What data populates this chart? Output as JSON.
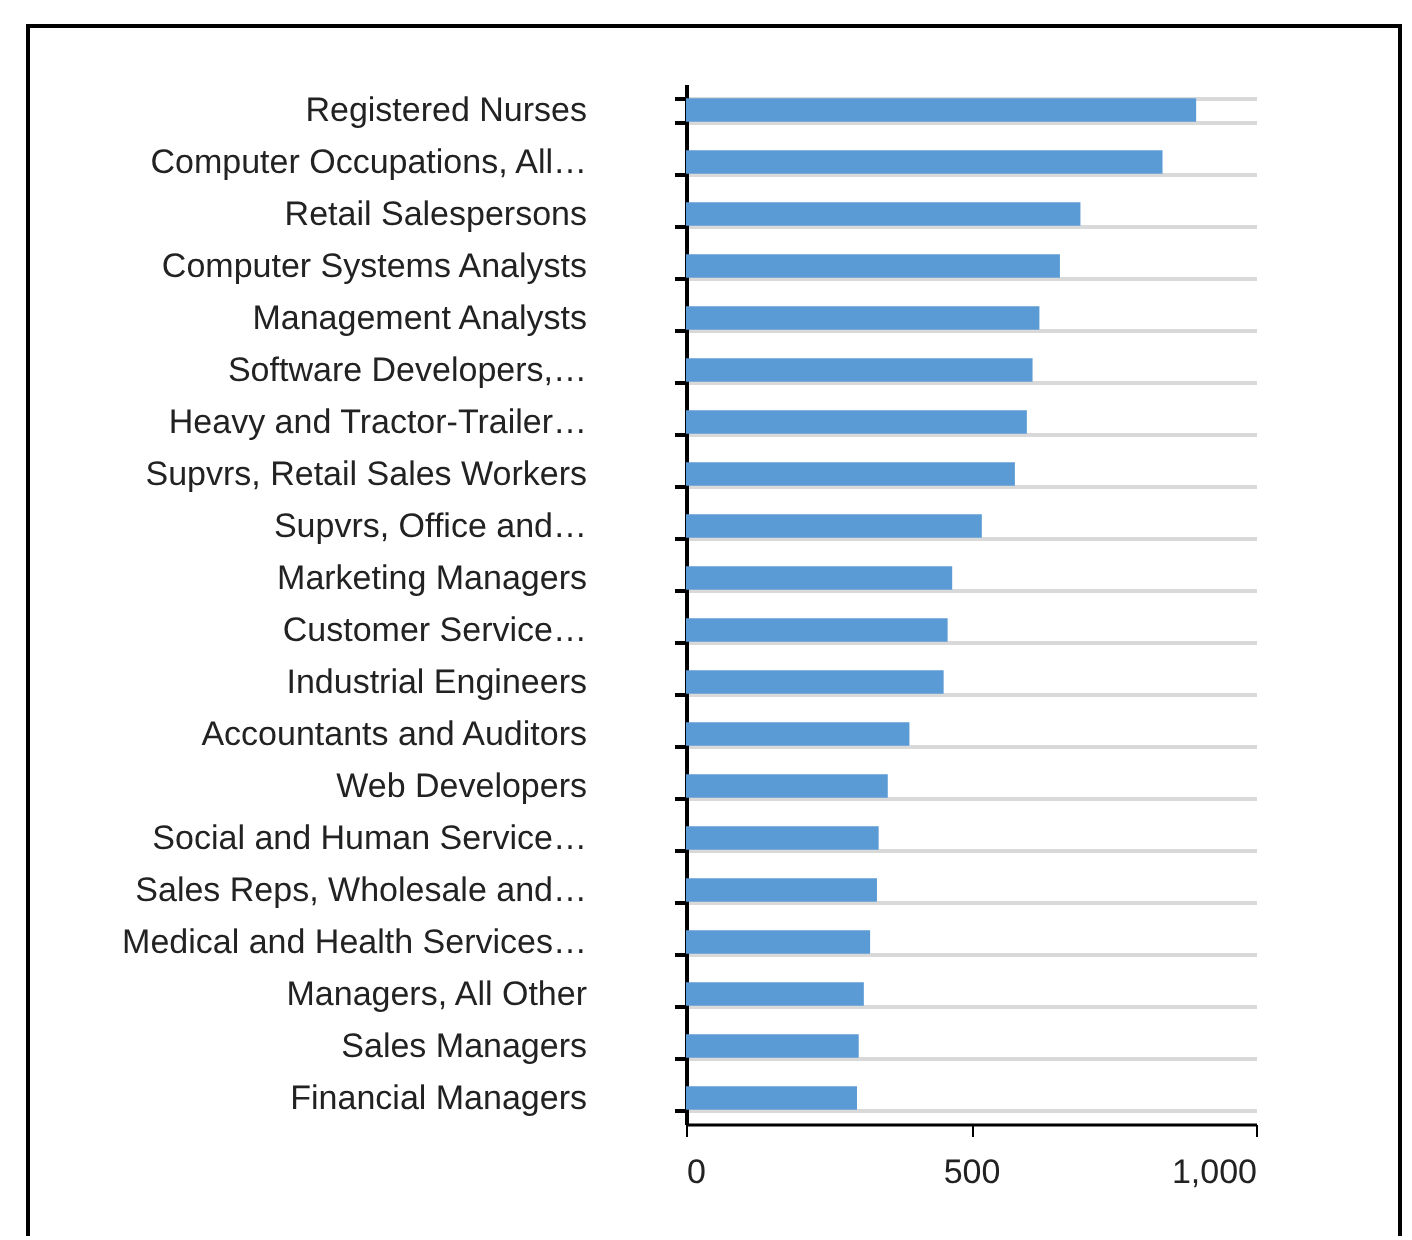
{
  "chart_data": {
    "type": "bar",
    "orientation": "horizontal",
    "categories": [
      "Registered Nurses",
      "Computer Occupations, All…",
      "Retail Salespersons",
      "Computer Systems Analysts",
      "Management Analysts",
      "Software Developers,…",
      "Heavy and Tractor-Trailer…",
      "Supvrs, Retail Sales Workers",
      "Supvrs, Office and…",
      "Marketing Managers",
      "Customer Service…",
      "Industrial Engineers",
      "Accountants and Auditors",
      "Web Developers",
      "Social and Human Service…",
      "Sales Reps, Wholesale and…",
      "Medical and Health Services…",
      "Managers, All Other",
      "Sales Managers",
      "Financial Managers"
    ],
    "values": [
      895,
      836,
      692,
      656,
      620,
      608,
      598,
      577,
      519,
      467,
      459,
      452,
      392,
      354,
      338,
      335,
      323,
      312,
      303,
      300
    ],
    "color": "#5b9bd5",
    "xlim": [
      0,
      1000
    ],
    "xticks": [
      0,
      500,
      {
        "value": 1000,
        "label": "1,000"
      }
    ],
    "grid": "y"
  }
}
